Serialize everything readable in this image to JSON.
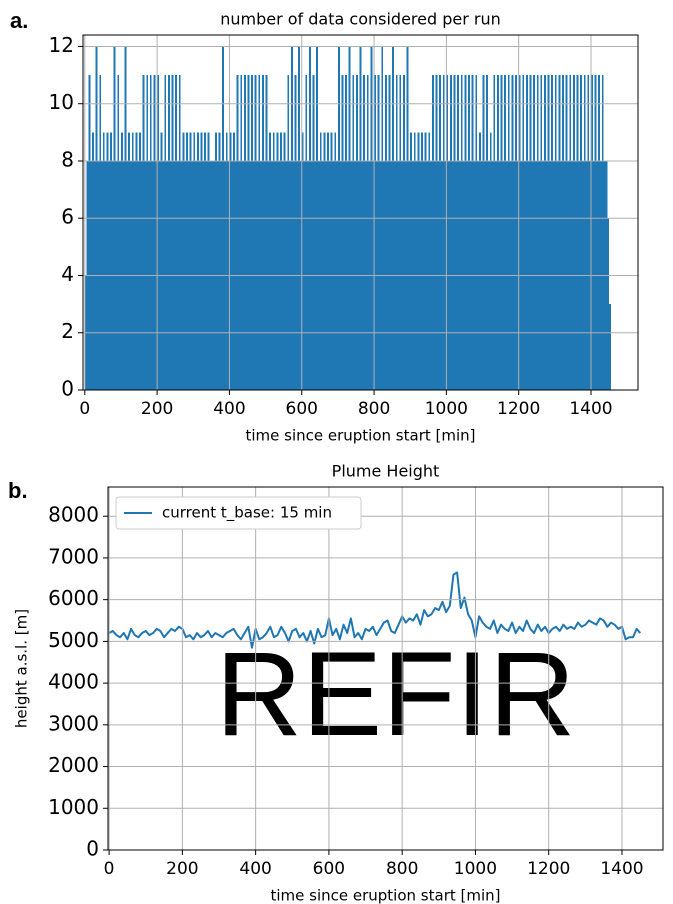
{
  "chart_data": [
    {
      "type": "bar",
      "panel_label": "a.",
      "title": "number of data considered per run",
      "x_label": "time since eruption start [min]",
      "x": [
        0,
        5,
        10,
        15,
        20,
        25,
        30,
        35,
        40,
        45,
        50,
        55,
        60,
        65,
        70,
        75,
        80,
        85,
        90,
        95,
        100,
        105,
        110,
        115,
        120,
        125,
        130,
        135,
        140,
        145,
        150,
        155,
        160,
        165,
        170,
        175,
        180,
        185,
        190,
        195,
        200,
        205,
        210,
        215,
        220,
        225,
        230,
        235,
        240,
        245,
        250,
        255,
        260,
        265,
        270,
        275,
        280,
        285,
        290,
        295,
        300,
        305,
        310,
        315,
        320,
        325,
        330,
        335,
        340,
        345,
        350,
        355,
        360,
        365,
        370,
        375,
        380,
        385,
        390,
        395,
        400,
        405,
        410,
        415,
        420,
        425,
        430,
        435,
        440,
        445,
        450,
        455,
        460,
        465,
        470,
        475,
        480,
        485,
        490,
        495,
        500,
        505,
        510,
        515,
        520,
        525,
        530,
        535,
        540,
        545,
        550,
        555,
        560,
        565,
        570,
        575,
        580,
        585,
        590,
        595,
        600,
        605,
        610,
        615,
        620,
        625,
        630,
        635,
        640,
        645,
        650,
        655,
        660,
        665,
        670,
        675,
        680,
        685,
        690,
        695,
        700,
        705,
        710,
        715,
        720,
        725,
        730,
        735,
        740,
        745,
        750,
        755,
        760,
        765,
        770,
        775,
        780,
        785,
        790,
        795,
        800,
        805,
        810,
        815,
        820,
        825,
        830,
        835,
        840,
        845,
        850,
        855,
        860,
        865,
        870,
        875,
        880,
        885,
        890,
        895,
        900,
        905,
        910,
        915,
        920,
        925,
        930,
        935,
        940,
        945,
        950,
        955,
        960,
        965,
        970,
        975,
        980,
        985,
        990,
        995,
        1000,
        1005,
        1010,
        1015,
        1020,
        1025,
        1030,
        1035,
        1040,
        1045,
        1050,
        1055,
        1060,
        1065,
        1070,
        1075,
        1080,
        1085,
        1090,
        1095,
        1100,
        1105,
        1110,
        1115,
        1120,
        1125,
        1130,
        1135,
        1140,
        1145,
        1150,
        1155,
        1160,
        1165,
        1170,
        1175,
        1180,
        1185,
        1190,
        1195,
        1200,
        1205,
        1210,
        1215,
        1220,
        1225,
        1230,
        1235,
        1240,
        1245,
        1250,
        1255,
        1260,
        1265,
        1270,
        1275,
        1280,
        1285,
        1290,
        1295,
        1300,
        1305,
        1310,
        1315,
        1320,
        1325,
        1330,
        1335,
        1340,
        1345,
        1350,
        1355,
        1360,
        1365,
        1370,
        1375,
        1380,
        1385,
        1390,
        1395,
        1400,
        1405,
        1410,
        1415,
        1420,
        1425,
        1430,
        1435,
        1440,
        1445,
        1450
      ],
      "values": [
        4,
        8,
        11,
        8,
        9,
        8,
        12,
        8,
        11,
        8,
        9,
        8,
        9,
        8,
        9,
        8,
        12,
        8,
        11,
        8,
        9,
        8,
        12,
        8,
        9,
        8,
        9,
        8,
        9,
        8,
        9,
        8,
        11,
        8,
        11,
        8,
        11,
        8,
        11,
        8,
        11,
        8,
        9,
        8,
        11,
        8,
        11,
        8,
        11,
        8,
        11,
        8,
        11,
        8,
        9,
        8,
        9,
        8,
        9,
        8,
        9,
        8,
        9,
        8,
        9,
        8,
        9,
        8,
        9,
        8,
        8,
        8,
        9,
        8,
        9,
        8,
        12,
        8,
        9,
        8,
        9,
        8,
        9,
        8,
        11,
        8,
        11,
        8,
        11,
        8,
        11,
        8,
        11,
        8,
        11,
        8,
        11,
        8,
        11,
        8,
        11,
        8,
        9,
        8,
        9,
        8,
        9,
        8,
        9,
        8,
        9,
        8,
        11,
        8,
        12,
        8,
        11,
        8,
        12,
        8,
        9,
        8,
        11,
        8,
        12,
        8,
        11,
        8,
        12,
        8,
        9,
        8,
        9,
        8,
        9,
        8,
        9,
        8,
        9,
        8,
        12,
        8,
        11,
        8,
        11,
        8,
        12,
        8,
        11,
        8,
        11,
        8,
        12,
        8,
        11,
        8,
        11,
        8,
        12,
        8,
        11,
        8,
        11,
        8,
        12,
        8,
        11,
        8,
        11,
        8,
        12,
        8,
        11,
        8,
        11,
        8,
        11,
        8,
        12,
        8,
        9,
        8,
        9,
        8,
        9,
        8,
        9,
        8,
        9,
        8,
        9,
        8,
        11,
        8,
        11,
        8,
        11,
        8,
        11,
        8,
        11,
        8,
        11,
        8,
        11,
        8,
        11,
        8,
        11,
        8,
        11,
        8,
        11,
        8,
        11,
        8,
        11,
        8,
        9,
        8,
        11,
        8,
        11,
        8,
        9,
        8,
        11,
        8,
        11,
        8,
        11,
        8,
        11,
        8,
        11,
        8,
        11,
        8,
        11,
        8,
        11,
        8,
        11,
        8,
        11,
        8,
        11,
        8,
        11,
        8,
        11,
        8,
        11,
        8,
        11,
        8,
        11,
        8,
        11,
        8,
        11,
        8,
        11,
        8,
        11,
        8,
        11,
        8,
        11,
        8,
        11,
        8,
        11,
        8,
        11,
        8,
        11,
        8,
        11,
        8,
        11,
        8,
        11,
        8,
        11,
        8,
        11,
        8,
        8,
        6,
        3
      ],
      "color": "#1f77b4",
      "xlim": [
        -5,
        1530
      ],
      "ylim": [
        0,
        12.4
      ],
      "xticks": [
        0,
        200,
        400,
        600,
        800,
        1000,
        1200,
        1400
      ],
      "yticks": [
        0,
        2,
        4,
        6,
        8,
        10,
        12
      ],
      "grid": true
    },
    {
      "type": "line",
      "panel_label": "b.",
      "title": "Plume Height",
      "x_label": "time since eruption start [min]",
      "y_label": "height a.s.l. [m]",
      "watermark": "REFIR",
      "x": [
        0,
        10,
        20,
        30,
        40,
        50,
        60,
        70,
        80,
        90,
        100,
        110,
        120,
        130,
        140,
        150,
        160,
        170,
        180,
        190,
        200,
        210,
        220,
        230,
        240,
        250,
        260,
        270,
        280,
        290,
        300,
        310,
        320,
        330,
        340,
        350,
        360,
        370,
        380,
        390,
        400,
        410,
        420,
        430,
        440,
        450,
        460,
        470,
        480,
        490,
        500,
        510,
        520,
        530,
        540,
        550,
        560,
        570,
        580,
        590,
        600,
        610,
        620,
        630,
        640,
        650,
        660,
        670,
        680,
        690,
        700,
        710,
        720,
        730,
        740,
        750,
        760,
        770,
        780,
        790,
        800,
        810,
        820,
        830,
        840,
        850,
        860,
        870,
        880,
        890,
        900,
        910,
        920,
        930,
        940,
        950,
        960,
        970,
        980,
        990,
        1000,
        1010,
        1020,
        1030,
        1040,
        1050,
        1060,
        1070,
        1080,
        1090,
        1100,
        1110,
        1120,
        1130,
        1140,
        1150,
        1160,
        1170,
        1180,
        1190,
        1200,
        1210,
        1220,
        1230,
        1240,
        1250,
        1260,
        1270,
        1280,
        1290,
        1300,
        1310,
        1320,
        1330,
        1340,
        1350,
        1360,
        1370,
        1380,
        1390,
        1400,
        1410,
        1420,
        1430,
        1440,
        1450
      ],
      "series": [
        {
          "name": "current t_base: 15 min",
          "color": "#1f77b4",
          "values": [
            5200,
            5250,
            5150,
            5100,
            5200,
            5050,
            5300,
            5150,
            5100,
            5200,
            5250,
            5150,
            5200,
            5300,
            5250,
            5100,
            5200,
            5300,
            5250,
            5350,
            5300,
            5100,
            5150,
            5050,
            5200,
            5100,
            5150,
            5250,
            5100,
            5200,
            5150,
            5100,
            5200,
            5250,
            5300,
            5150,
            5050,
            5200,
            5350,
            4850,
            5300,
            5050,
            5100,
            5200,
            5350,
            5100,
            5150,
            5350,
            5200,
            5000,
            5250,
            5300,
            5100,
            5200,
            5000,
            5250,
            4950,
            5300,
            5100,
            5150,
            5550,
            5150,
            5300,
            5050,
            5400,
            5200,
            5550,
            5100,
            5200,
            5050,
            5300,
            5250,
            5350,
            5150,
            5300,
            5450,
            5500,
            5250,
            5200,
            5400,
            5600,
            5450,
            5550,
            5500,
            5650,
            5400,
            5750,
            5600,
            5650,
            5800,
            5750,
            5950,
            5700,
            5850,
            6600,
            6650,
            5800,
            6050,
            5650,
            5500,
            5100,
            5600,
            5450,
            5350,
            5300,
            5500,
            5200,
            5400,
            5300,
            5250,
            5450,
            5200,
            5350,
            5250,
            5500,
            5300,
            5200,
            5400,
            5250,
            5350,
            5200,
            5300,
            5350,
            5250,
            5400,
            5300,
            5350,
            5300,
            5450,
            5350,
            5400,
            5500,
            5450,
            5400,
            5550,
            5500,
            5350,
            5450,
            5400,
            5300,
            5350,
            5050,
            5100,
            5100,
            5300,
            5200
          ]
        }
      ],
      "legend": "upper left",
      "xlim": [
        -3,
        1512
      ],
      "ylim": [
        0,
        8700
      ],
      "xticks": [
        0,
        200,
        400,
        600,
        800,
        1000,
        1200,
        1400
      ],
      "yticks": [
        0,
        1000,
        2000,
        3000,
        4000,
        5000,
        6000,
        7000,
        8000
      ],
      "grid": true
    }
  ]
}
